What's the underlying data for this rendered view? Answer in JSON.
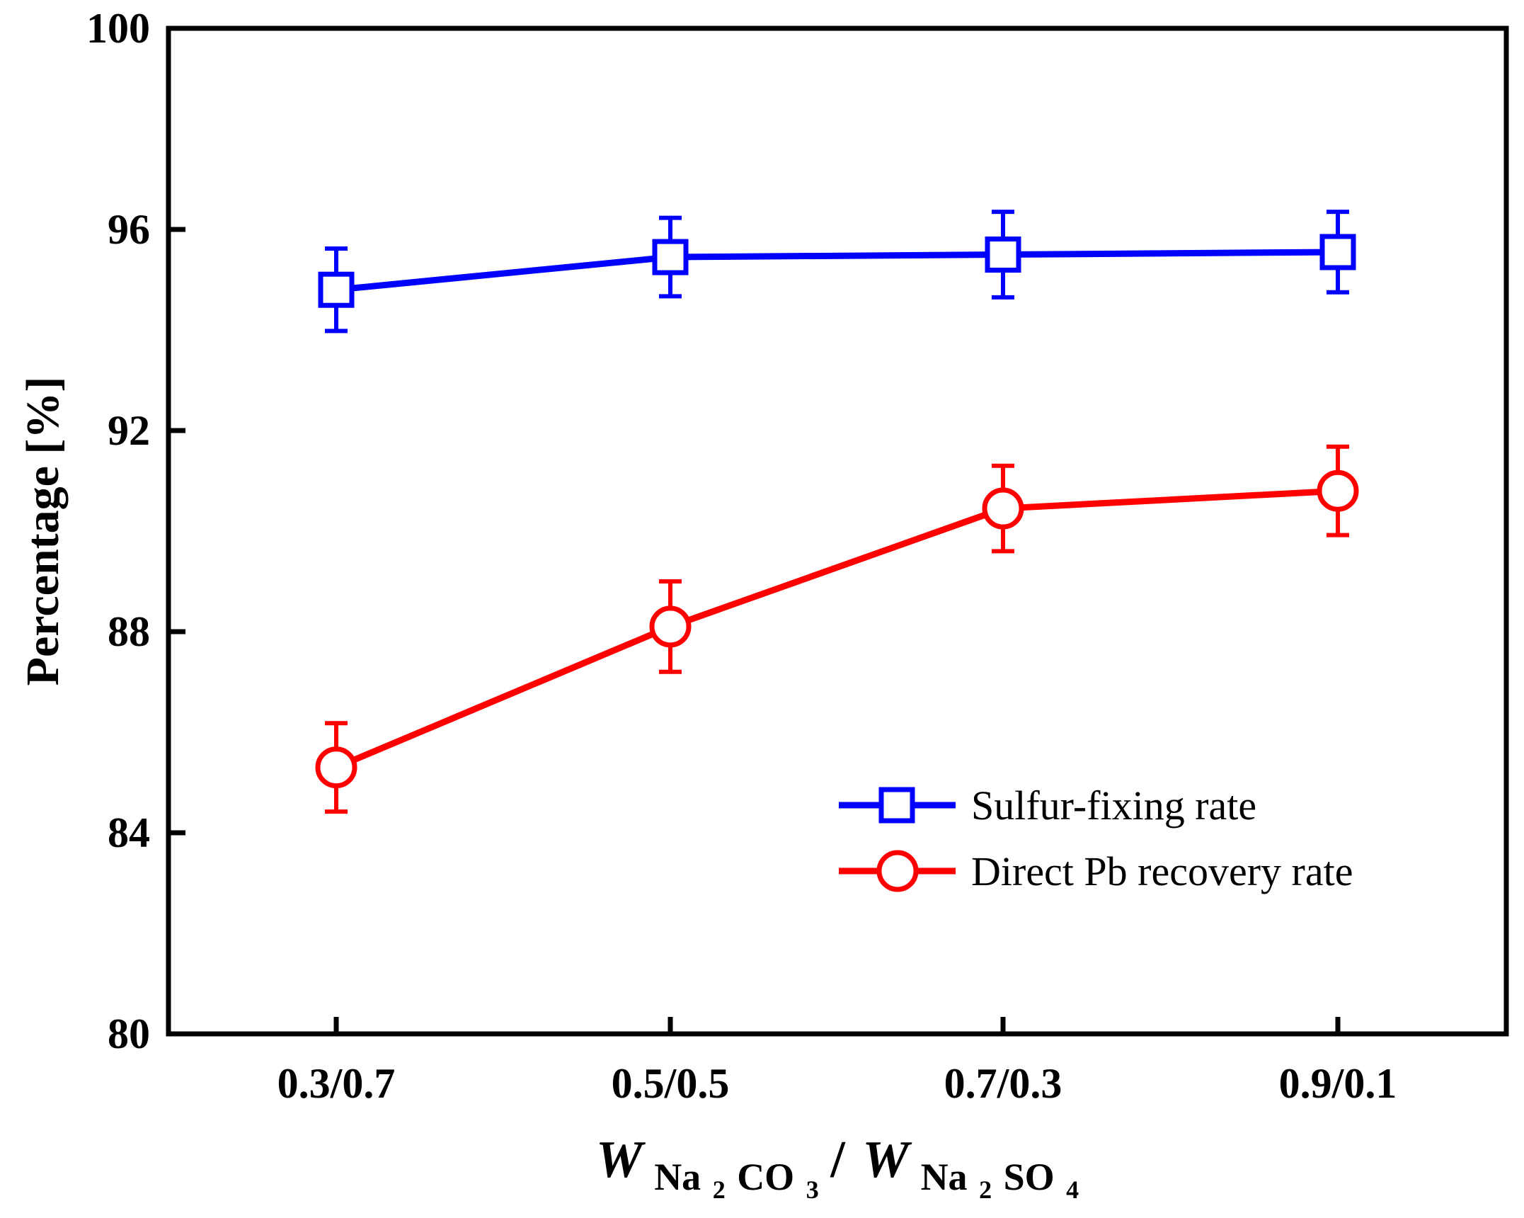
{
  "chart_data": {
    "type": "line",
    "title": "",
    "categories": [
      "0.3/0.7",
      "0.5/0.5",
      "0.7/0.3",
      "0.9/0.1"
    ],
    "ylabel": "Percentage [%]",
    "xlabel": {
      "w1": "W",
      "sub1": "Na",
      "sub1_sub": "2",
      "sub1_rest": "CO",
      "sub1_rest_sub": "3",
      "slash": "/",
      "w2": "W",
      "sub2": "Na",
      "sub2_sub": "2",
      "sub2_rest": "SO",
      "sub2_rest_sub": "4"
    },
    "ylim": [
      80,
      100
    ],
    "yticks": [
      80,
      84,
      88,
      92,
      96,
      100
    ],
    "grid": false,
    "legend_position": "bottom-right",
    "series": [
      {
        "name": "Sulfur-fixing rate",
        "color": "#0000ff",
        "marker": "square",
        "values": [
          94.8,
          95.45,
          95.5,
          95.55
        ],
        "errors": [
          0.82,
          0.78,
          0.85,
          0.8
        ]
      },
      {
        "name": "Direct Pb recovery rate",
        "color": "#ff0000",
        "marker": "circle",
        "values": [
          85.3,
          88.1,
          90.45,
          90.8
        ],
        "errors": [
          0.88,
          0.9,
          0.85,
          0.88
        ]
      }
    ]
  }
}
